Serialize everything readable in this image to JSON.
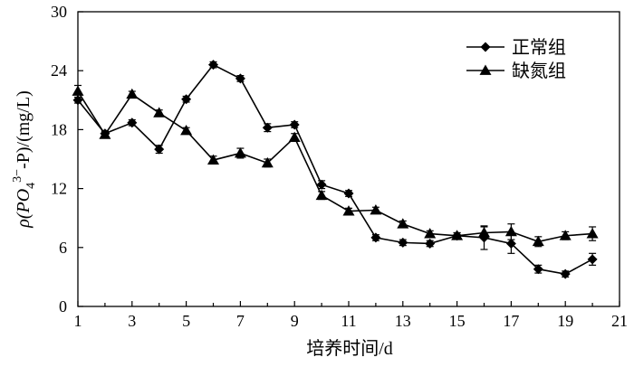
{
  "chart_data": {
    "type": "line",
    "title": "",
    "xlabel": "培养时间/d",
    "ylabel_parts": {
      "prefix": "ρ(PO",
      "sub": "4",
      "sup": "3−",
      "suffix": "-P)/(mg/L)"
    },
    "xlim": [
      1,
      21
    ],
    "ylim": [
      0,
      30
    ],
    "x_ticks": [
      1,
      3,
      5,
      7,
      9,
      11,
      13,
      15,
      17,
      19,
      21
    ],
    "y_ticks": [
      0,
      6,
      12,
      18,
      24,
      30
    ],
    "x_tick_labels": [
      "1",
      "3",
      "5",
      "7",
      "9",
      "11",
      "13",
      "15",
      "17",
      "19",
      "21"
    ],
    "y_tick_labels": [
      "0",
      "6",
      "12",
      "18",
      "24",
      "30"
    ],
    "grid": false,
    "legend_position": "top-right",
    "series": [
      {
        "name": "正常组",
        "marker": "diamond",
        "x": [
          1,
          2,
          3,
          4,
          5,
          6,
          7,
          8,
          9,
          10,
          11,
          12,
          13,
          14,
          15,
          16,
          17,
          18,
          19,
          20
        ],
        "y": [
          21.0,
          17.6,
          18.7,
          16.0,
          21.1,
          24.6,
          23.2,
          18.2,
          18.5,
          12.4,
          11.5,
          7.0,
          6.5,
          6.4,
          7.2,
          7.0,
          6.4,
          3.8,
          3.3,
          4.8
        ],
        "err": [
          0.3,
          0.3,
          0.3,
          0.4,
          0.3,
          0.3,
          0.3,
          0.4,
          0.3,
          0.4,
          0.3,
          0.3,
          0.3,
          0.3,
          0.3,
          1.2,
          1.0,
          0.4,
          0.3,
          0.6
        ]
      },
      {
        "name": "缺氮组",
        "marker": "triangle",
        "x": [
          1,
          2,
          3,
          4,
          5,
          6,
          7,
          8,
          9,
          10,
          11,
          12,
          13,
          14,
          15,
          16,
          17,
          18,
          19,
          20
        ],
        "y": [
          21.9,
          17.5,
          21.6,
          19.7,
          17.9,
          14.9,
          15.6,
          14.6,
          17.2,
          11.3,
          9.7,
          9.8,
          8.4,
          7.4,
          7.2,
          7.5,
          7.6,
          6.6,
          7.2,
          7.4
        ],
        "err": [
          0.6,
          0.3,
          0.3,
          0.3,
          0.3,
          0.4,
          0.5,
          0.4,
          0.4,
          0.4,
          0.3,
          0.3,
          0.3,
          0.3,
          0.3,
          0.6,
          0.8,
          0.5,
          0.4,
          0.7
        ]
      }
    ]
  }
}
